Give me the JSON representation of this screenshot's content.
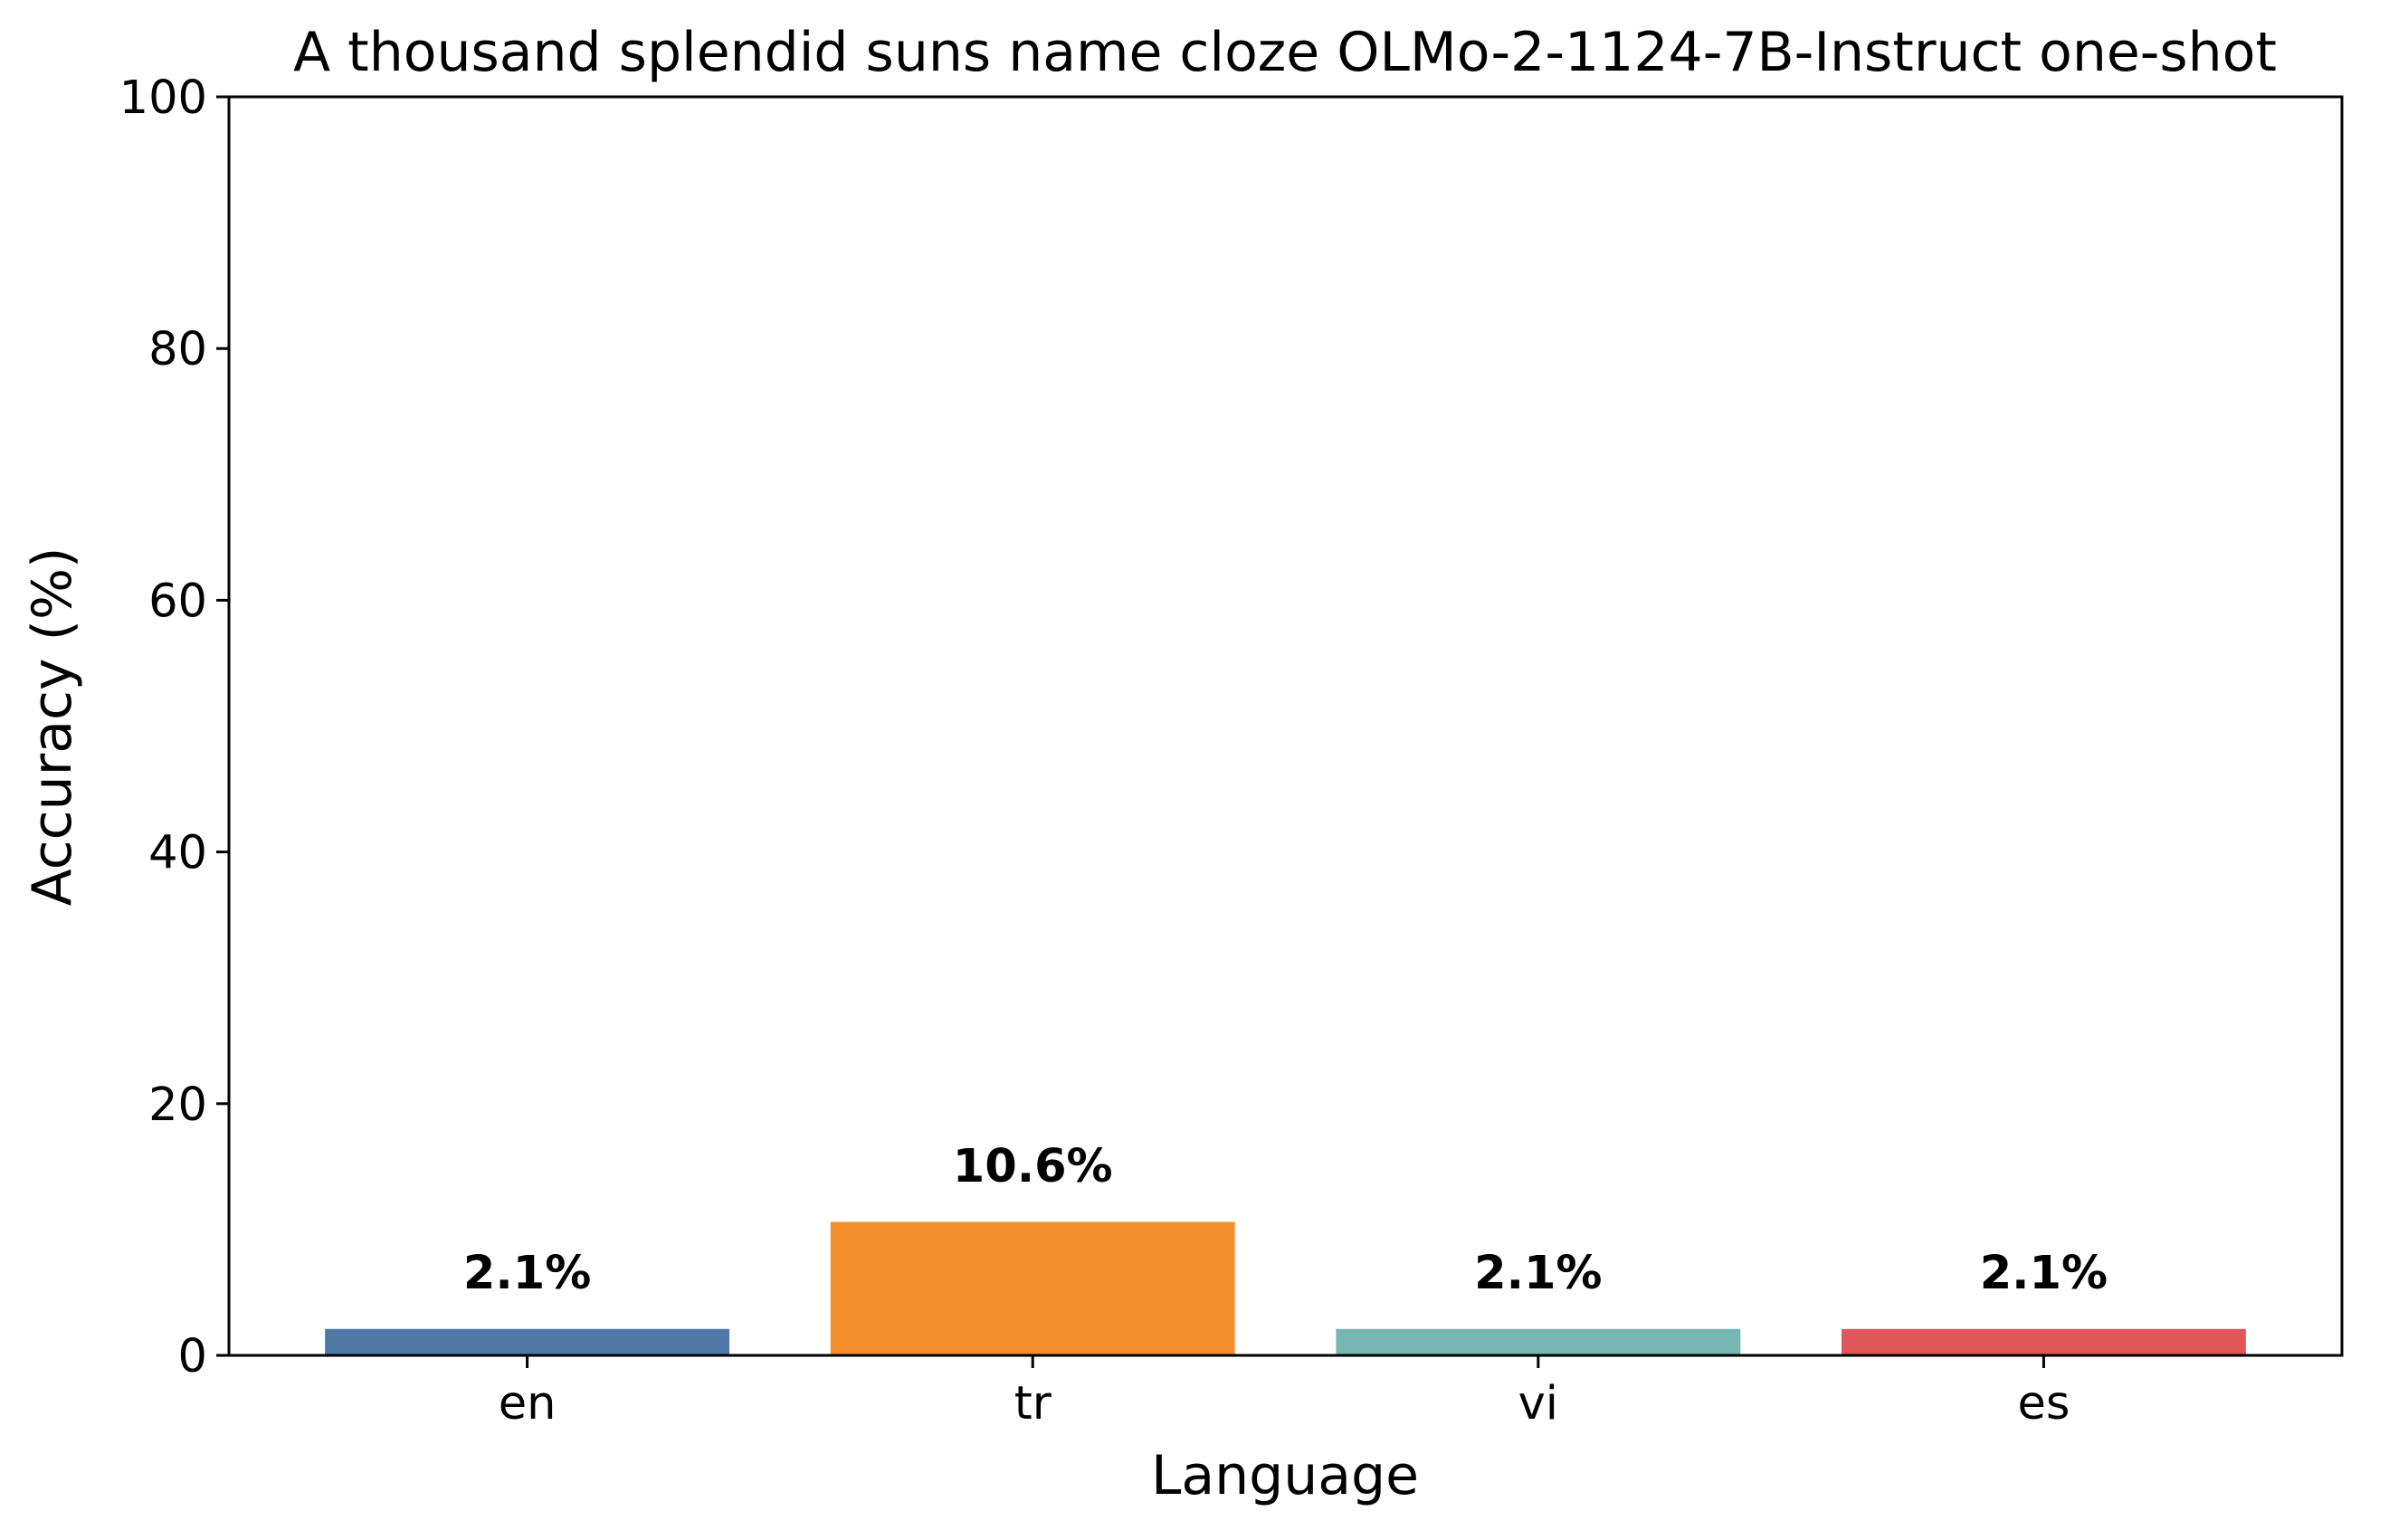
{
  "chart_data": {
    "type": "bar",
    "title": "A thousand splendid suns name cloze OLMo-2-1124-7B-Instruct one-shot",
    "xlabel": "Language",
    "ylabel": "Accuracy (%)",
    "categories": [
      "en",
      "tr",
      "vi",
      "es"
    ],
    "values": [
      2.1,
      10.6,
      2.1,
      2.1
    ],
    "data_labels": [
      "2.1%",
      "10.6%",
      "2.1%",
      "2.1%"
    ],
    "colors": [
      "#4e79a7",
      "#f28e2b",
      "#76b7b2",
      "#e15759"
    ],
    "ylim": [
      0,
      100
    ],
    "yticks": [
      0,
      20,
      40,
      60,
      80,
      100
    ],
    "ytick_labels": [
      "0",
      "20",
      "40",
      "60",
      "80",
      "100"
    ],
    "grid": false,
    "legend": "none"
  }
}
